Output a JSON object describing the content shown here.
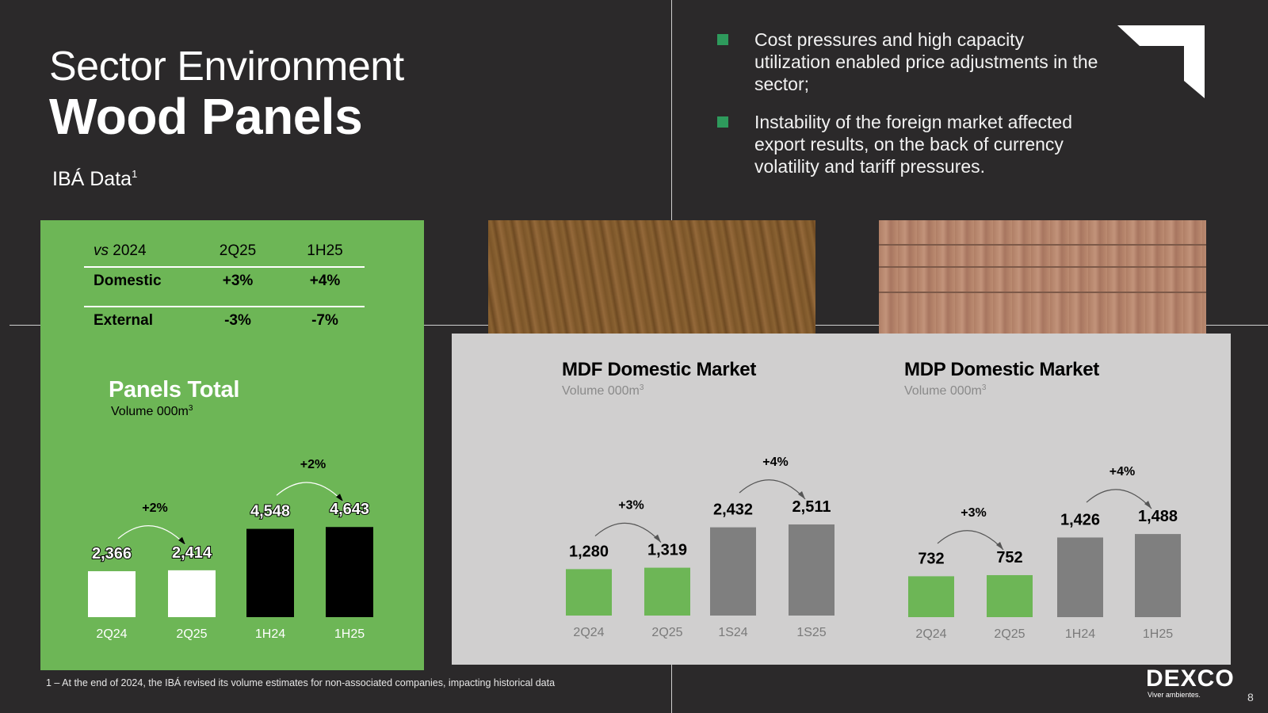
{
  "header": {
    "title_line1": "Sector Environment",
    "title_line2": "Wood Panels",
    "subtitle": "IBÁ Data",
    "subtitle_sup": "1"
  },
  "bullets": [
    "Cost pressures and high capacity utilization enabled price adjustments in the sector;",
    "Instability of the foreign market affected export results, on the back of currency volatility and tariff pressures."
  ],
  "comparison_table": {
    "header_vs": "vs",
    "header_year": "2024",
    "columns": [
      "2Q25",
      "1H25"
    ],
    "rows": [
      {
        "label": "Domestic",
        "values": [
          "+3%",
          "+4%"
        ]
      },
      {
        "label": "External",
        "values": [
          "-3%",
          "-7%"
        ]
      }
    ]
  },
  "chart_data": [
    {
      "type": "bar",
      "title": "Panels Total",
      "subtitle": "Volume 000m",
      "subtitle_sup": "3",
      "categories": [
        "2Q24",
        "2Q25",
        "1H24",
        "1H25"
      ],
      "values": [
        2366,
        2414,
        4548,
        4643
      ],
      "value_labels": [
        "2,366",
        "2,414",
        "4,548",
        "4,643"
      ],
      "bar_colors": [
        "#ffffff",
        "#ffffff",
        "#000000",
        "#000000"
      ],
      "annotations": [
        {
          "from": "2Q24",
          "to": "2Q25",
          "label": "+2%"
        },
        {
          "from": "1H24",
          "to": "1H25",
          "label": "+2%"
        }
      ]
    },
    {
      "type": "bar",
      "title": "MDF Domestic Market",
      "subtitle": "Volume 000m",
      "subtitle_sup": "3",
      "categories": [
        "2Q24",
        "2Q25",
        "1S24",
        "1S25"
      ],
      "values": [
        1280,
        1319,
        2432,
        2511
      ],
      "value_labels": [
        "1,280",
        "1,319",
        "2,432",
        "2,511"
      ],
      "bar_colors": [
        "#6db656",
        "#6db656",
        "#7f7f7f",
        "#7f7f7f"
      ],
      "annotations": [
        {
          "from": "2Q24",
          "to": "2Q25",
          "label": "+3%"
        },
        {
          "from": "1S24",
          "to": "1S25",
          "label": "+4%"
        }
      ]
    },
    {
      "type": "bar",
      "title": "MDP  Domestic Market",
      "subtitle": "Volume 000m",
      "subtitle_sup": "3",
      "categories": [
        "2Q24",
        "2Q25",
        "1H24",
        "1H25"
      ],
      "values": [
        732,
        752,
        1426,
        1488
      ],
      "value_labels": [
        "732",
        "752",
        "1,426",
        "1,488"
      ],
      "bar_colors": [
        "#6db656",
        "#6db656",
        "#7f7f7f",
        "#7f7f7f"
      ],
      "annotations": [
        {
          "from": "2Q24",
          "to": "2Q25",
          "label": "+3%"
        },
        {
          "from": "1H24",
          "to": "1H25",
          "label": "+4%"
        }
      ]
    }
  ],
  "footnote": "1 – At the end of 2024, the IBÁ revised its volume estimates for non-associated companies, impacting historical data",
  "brand": {
    "name": "DEXCO",
    "tagline": "Viver ambientes."
  },
  "page_number": "8",
  "colors": {
    "background": "#2b292a",
    "green": "#6db656",
    "grey_panel": "#d0cfcf",
    "bullet": "#2e9a5c"
  },
  "icons": {
    "corner_mark": "corner-arrow-icon"
  }
}
